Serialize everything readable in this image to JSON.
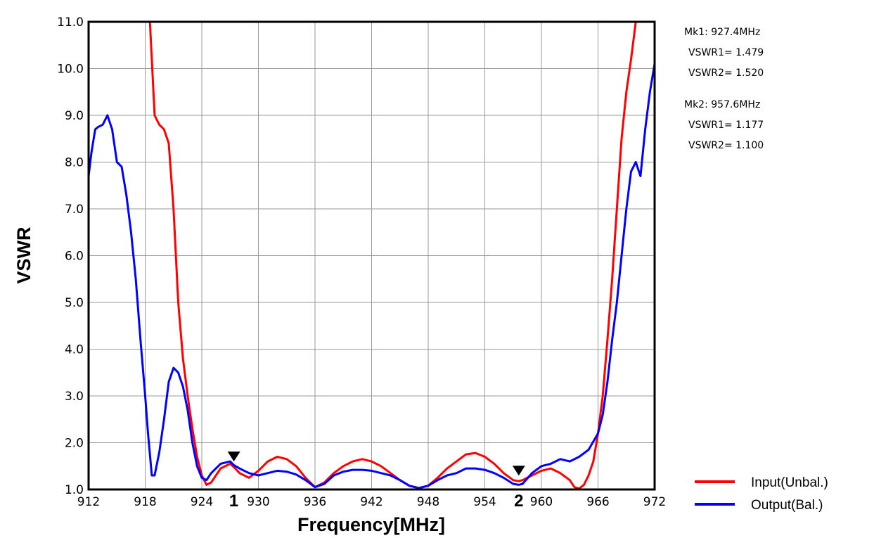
{
  "chart_data": {
    "type": "line",
    "xlabel": "Frequency[MHz]",
    "ylabel": "VSWR",
    "xlim": [
      912,
      972
    ],
    "ylim": [
      1.0,
      11.0
    ],
    "x_ticks": [
      912,
      918,
      924,
      930,
      936,
      942,
      948,
      954,
      960,
      966,
      972
    ],
    "x_tick_labels": [
      "912",
      "918",
      "924",
      "930",
      "936",
      "942",
      "948",
      "954",
      "960",
      "966",
      "972"
    ],
    "y_ticks": [
      1.0,
      2.0,
      3.0,
      4.0,
      5.0,
      6.0,
      7.0,
      8.0,
      9.0,
      10.0,
      11.0
    ],
    "y_tick_labels": [
      "1.0",
      "2.0",
      "3.0",
      "4.0",
      "5.0",
      "6.0",
      "7.0",
      "8.0",
      "9.0",
      "10.0",
      "11.0"
    ],
    "grid": true,
    "legend_position": "bottom-right",
    "series": [
      {
        "name": "Input(Unbal.)",
        "color": "#ff0000",
        "x": [
          912,
          918.5,
          919,
          919.5,
          920,
          920.5,
          921,
          921.5,
          922,
          922.5,
          923,
          923.5,
          924,
          924.5,
          925,
          925.5,
          926,
          927,
          927.4,
          928,
          929,
          930,
          931,
          932,
          933,
          934,
          935,
          936,
          937,
          938,
          939,
          940,
          941,
          942,
          943,
          944,
          945,
          946,
          947,
          948,
          949,
          950,
          951,
          952,
          953,
          954,
          955,
          956,
          957,
          957.6,
          958,
          959,
          960,
          961,
          962,
          963,
          963.5,
          964,
          964.5,
          965,
          965.5,
          966,
          966.5,
          967,
          967.5,
          968,
          968.5,
          969,
          969.5,
          970,
          970.5,
          971,
          971.5,
          972
        ],
        "y": [
          11.0,
          11.0,
          9.0,
          8.8,
          8.7,
          8.4,
          7.0,
          5.0,
          3.8,
          3.0,
          2.3,
          1.7,
          1.3,
          1.1,
          1.15,
          1.3,
          1.45,
          1.55,
          1.479,
          1.35,
          1.25,
          1.4,
          1.6,
          1.7,
          1.65,
          1.5,
          1.25,
          1.05,
          1.15,
          1.35,
          1.5,
          1.6,
          1.65,
          1.6,
          1.5,
          1.35,
          1.2,
          1.08,
          1.03,
          1.08,
          1.25,
          1.45,
          1.6,
          1.75,
          1.78,
          1.7,
          1.55,
          1.35,
          1.2,
          1.177,
          1.2,
          1.3,
          1.4,
          1.45,
          1.35,
          1.2,
          1.05,
          1.02,
          1.1,
          1.3,
          1.6,
          2.2,
          3.0,
          4.2,
          5.5,
          7.0,
          8.5,
          9.5,
          10.2,
          11.0,
          11.0,
          11.0,
          11.0,
          11.0
        ]
      },
      {
        "name": "Output(Bal.)",
        "color": "#0000ff",
        "x": [
          912,
          912.3,
          912.7,
          913,
          913.5,
          914,
          914.5,
          915,
          915.5,
          916,
          916.5,
          917,
          917.5,
          918,
          918.3,
          918.7,
          919,
          919.5,
          920,
          920.5,
          921,
          921.5,
          922,
          922.5,
          923,
          923.5,
          924,
          924.5,
          925,
          926,
          927,
          927.4,
          928,
          929,
          930,
          931,
          932,
          933,
          934,
          935,
          936,
          937,
          938,
          939,
          940,
          941,
          942,
          943,
          944,
          945,
          946,
          947,
          948,
          949,
          950,
          951,
          952,
          953,
          954,
          955,
          956,
          957,
          957.6,
          958,
          959,
          960,
          961,
          962,
          963,
          964,
          965,
          966,
          966.5,
          967,
          967.5,
          968,
          968.5,
          969,
          969.5,
          970,
          970.5,
          971,
          971.5,
          972
        ],
        "y": [
          7.7,
          8.2,
          8.7,
          8.75,
          8.8,
          9.0,
          8.7,
          8.0,
          7.9,
          7.3,
          6.5,
          5.5,
          4.2,
          3.0,
          2.2,
          1.3,
          1.3,
          1.8,
          2.5,
          3.3,
          3.6,
          3.5,
          3.2,
          2.7,
          2.0,
          1.5,
          1.25,
          1.2,
          1.35,
          1.55,
          1.6,
          1.52,
          1.45,
          1.35,
          1.3,
          1.35,
          1.4,
          1.38,
          1.32,
          1.2,
          1.05,
          1.12,
          1.3,
          1.38,
          1.42,
          1.42,
          1.4,
          1.35,
          1.3,
          1.2,
          1.08,
          1.03,
          1.08,
          1.2,
          1.3,
          1.35,
          1.45,
          1.45,
          1.42,
          1.35,
          1.25,
          1.12,
          1.1,
          1.12,
          1.35,
          1.5,
          1.55,
          1.65,
          1.6,
          1.7,
          1.85,
          2.2,
          2.6,
          3.3,
          4.2,
          5.0,
          6.0,
          7.0,
          7.8,
          8.0,
          7.7,
          8.7,
          9.5,
          10.1
        ]
      }
    ],
    "markers": [
      {
        "id": "1",
        "x": 927.4
      },
      {
        "id": "2",
        "x": 957.6
      }
    ],
    "marker_readout": {
      "mk1_line": "Mk1:  927.4MHz",
      "mk1_vswr1": "VSWR1= 1.479",
      "mk1_vswr2": "VSWR2= 1.520",
      "mk2_line": "Mk2:  957.6MHz",
      "mk2_vswr1": "VSWR1= 1.177",
      "mk2_vswr2": "VSWR2= 1.100"
    }
  }
}
